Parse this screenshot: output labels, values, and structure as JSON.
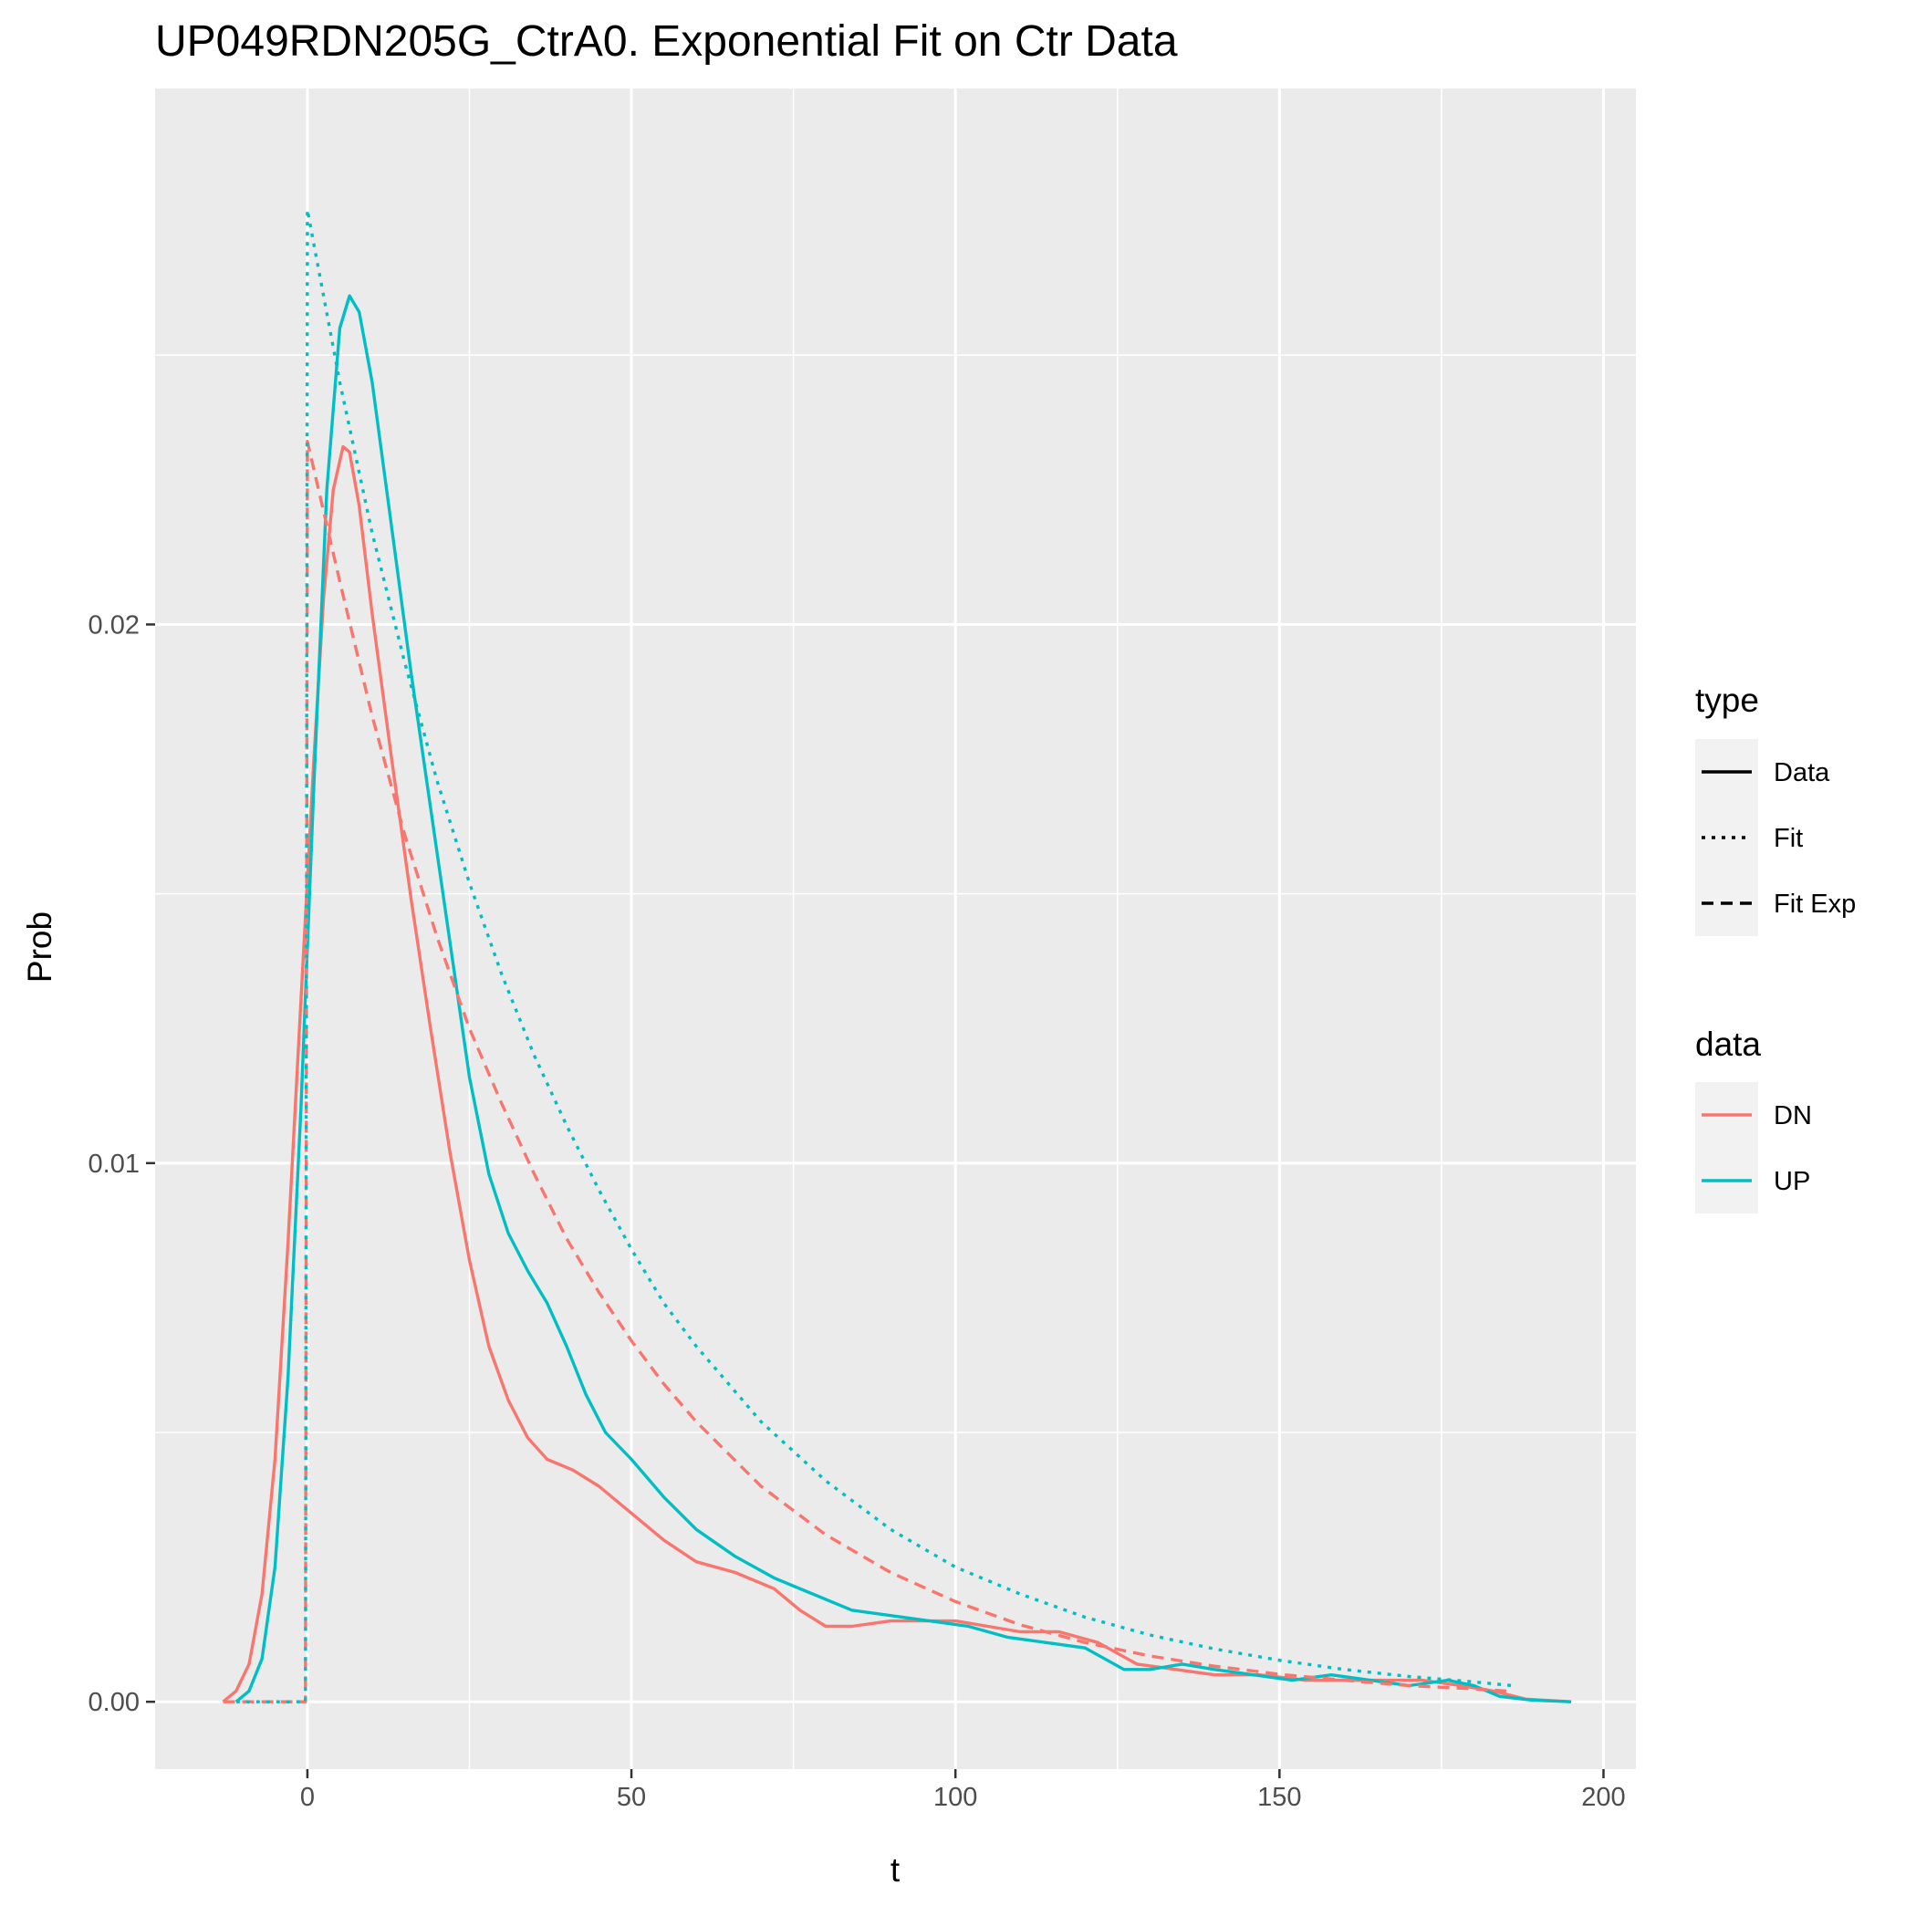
{
  "chart_data": {
    "type": "line",
    "title": "UP049RDN205G_CtrA0. Exponential Fit on Ctr Data",
    "xlabel": "t",
    "ylabel": "Prob",
    "xlim": [
      -23.5,
      205
    ],
    "ylim": [
      -0.00125,
      0.02995
    ],
    "x_ticks": [
      0,
      50,
      100,
      150,
      200
    ],
    "x_tick_labels": [
      "0",
      "50",
      "100",
      "150",
      "200"
    ],
    "y_ticks": [
      0.0,
      0.01,
      0.02
    ],
    "y_tick_labels": [
      "0.00",
      "0.01",
      "0.02"
    ],
    "grid": true,
    "legend_position": "right",
    "legends": [
      {
        "title": "type",
        "entries": [
          {
            "label": "Data",
            "linestyle": "solid"
          },
          {
            "label": "Fit",
            "linestyle": "dotted"
          },
          {
            "label": "Fit Exp",
            "linestyle": "dashed"
          }
        ]
      },
      {
        "title": "data",
        "entries": [
          {
            "label": "DN",
            "color": "#F8766D"
          },
          {
            "label": "UP",
            "color": "#00BFC4"
          }
        ]
      }
    ],
    "series": [
      {
        "group": "DN",
        "type": "Data",
        "color": "#F8766D",
        "linestyle": "solid",
        "points": [
          [
            -13,
            0
          ],
          [
            -11,
            0.0002
          ],
          [
            -9,
            0.0007
          ],
          [
            -7,
            0.002
          ],
          [
            -5,
            0.0045
          ],
          [
            -3,
            0.0085
          ],
          [
            -1,
            0.013
          ],
          [
            1,
            0.0175
          ],
          [
            2.5,
            0.0205
          ],
          [
            4,
            0.0225
          ],
          [
            5.5,
            0.0233
          ],
          [
            6.5,
            0.0232
          ],
          [
            8,
            0.0222
          ],
          [
            10,
            0.0202
          ],
          [
            13,
            0.0175
          ],
          [
            16,
            0.0149
          ],
          [
            19,
            0.0125
          ],
          [
            22,
            0.0102
          ],
          [
            25,
            0.0082
          ],
          [
            28,
            0.0066
          ],
          [
            31,
            0.0056
          ],
          [
            34,
            0.0049
          ],
          [
            37,
            0.0045
          ],
          [
            41,
            0.0043
          ],
          [
            45,
            0.004
          ],
          [
            50,
            0.0035
          ],
          [
            55,
            0.003
          ],
          [
            60,
            0.0026
          ],
          [
            66,
            0.0024
          ],
          [
            72,
            0.0021
          ],
          [
            76,
            0.0017
          ],
          [
            80,
            0.0014
          ],
          [
            84,
            0.0014
          ],
          [
            90,
            0.0015
          ],
          [
            100,
            0.0015
          ],
          [
            105,
            0.0014
          ],
          [
            110,
            0.0013
          ],
          [
            116,
            0.0013
          ],
          [
            122,
            0.0011
          ],
          [
            128,
            0.0007
          ],
          [
            134,
            0.0006
          ],
          [
            140,
            0.0005
          ],
          [
            147,
            0.0005
          ],
          [
            154,
            0.0004
          ],
          [
            160,
            0.0004
          ],
          [
            166,
            0.0004
          ],
          [
            172,
            0.0004
          ],
          [
            178,
            0.0003
          ],
          [
            183,
            0.0002
          ],
          [
            188,
            5e-05
          ],
          [
            195,
            0
          ]
        ]
      },
      {
        "group": "UP",
        "type": "Data",
        "color": "#00BFC4",
        "linestyle": "solid",
        "points": [
          [
            -11,
            0
          ],
          [
            -9,
            0.0002
          ],
          [
            -7,
            0.0008
          ],
          [
            -5,
            0.0025
          ],
          [
            -3,
            0.006
          ],
          [
            -1,
            0.011
          ],
          [
            1,
            0.017
          ],
          [
            3,
            0.0225
          ],
          [
            5,
            0.0255
          ],
          [
            6.5,
            0.0261
          ],
          [
            8,
            0.0258
          ],
          [
            10,
            0.0245
          ],
          [
            13,
            0.0218
          ],
          [
            16,
            0.0191
          ],
          [
            19,
            0.0166
          ],
          [
            22,
            0.0141
          ],
          [
            25,
            0.0116
          ],
          [
            28,
            0.0098
          ],
          [
            31,
            0.0087
          ],
          [
            34,
            0.008
          ],
          [
            37,
            0.0074
          ],
          [
            40,
            0.0066
          ],
          [
            43,
            0.0057
          ],
          [
            46,
            0.005
          ],
          [
            50,
            0.0045
          ],
          [
            55,
            0.0038
          ],
          [
            60,
            0.0032
          ],
          [
            66,
            0.0027
          ],
          [
            72,
            0.0023
          ],
          [
            78,
            0.002
          ],
          [
            84,
            0.0017
          ],
          [
            90,
            0.0016
          ],
          [
            96,
            0.0015
          ],
          [
            102,
            0.0014
          ],
          [
            108,
            0.0012
          ],
          [
            114,
            0.0011
          ],
          [
            120,
            0.001
          ],
          [
            126,
            0.0006
          ],
          [
            130,
            0.0006
          ],
          [
            135,
            0.0007
          ],
          [
            140,
            0.0006
          ],
          [
            146,
            0.0005
          ],
          [
            152,
            0.0004
          ],
          [
            158,
            0.0005
          ],
          [
            164,
            0.0004
          ],
          [
            170,
            0.0003
          ],
          [
            176,
            0.0004
          ],
          [
            180,
            0.0003
          ],
          [
            184,
            0.0001
          ],
          [
            189,
            3e-05
          ],
          [
            195,
            0
          ]
        ]
      },
      {
        "group": "DN",
        "type": "Fit Exp",
        "color": "#F8766D",
        "linestyle": "dashed",
        "points": [
          [
            -13,
            0
          ],
          [
            -0.3,
            0
          ],
          [
            0,
            0.0234
          ],
          [
            5,
            0.0208
          ],
          [
            10,
            0.0183
          ],
          [
            15,
            0.0161
          ],
          [
            20,
            0.0142
          ],
          [
            25,
            0.0125
          ],
          [
            30,
            0.0111
          ],
          [
            35,
            0.0098
          ],
          [
            40,
            0.0086
          ],
          [
            45,
            0.0076
          ],
          [
            50,
            0.0067
          ],
          [
            55,
            0.0059
          ],
          [
            60,
            0.0052
          ],
          [
            70,
            0.004
          ],
          [
            80,
            0.0031
          ],
          [
            90,
            0.0024
          ],
          [
            100,
            0.00186
          ],
          [
            110,
            0.00143
          ],
          [
            120,
            0.0011
          ],
          [
            130,
            0.00085
          ],
          [
            140,
            0.00066
          ],
          [
            150,
            0.00051
          ],
          [
            160,
            0.0004
          ],
          [
            170,
            0.0003
          ],
          [
            180,
            0.00024
          ],
          [
            185,
            0.0002
          ]
        ]
      },
      {
        "group": "UP",
        "type": "Fit",
        "color": "#00BFC4",
        "linestyle": "dotted",
        "points": [
          [
            -11,
            0
          ],
          [
            -0.3,
            0
          ],
          [
            0,
            0.0277
          ],
          [
            5,
            0.0245
          ],
          [
            10,
            0.0217
          ],
          [
            15,
            0.0193
          ],
          [
            20,
            0.0171
          ],
          [
            25,
            0.0152
          ],
          [
            30,
            0.0135
          ],
          [
            35,
            0.012
          ],
          [
            40,
            0.0107
          ],
          [
            45,
            0.0095
          ],
          [
            50,
            0.0084
          ],
          [
            55,
            0.0074
          ],
          [
            60,
            0.0066
          ],
          [
            70,
            0.0052
          ],
          [
            80,
            0.0041
          ],
          [
            90,
            0.0032
          ],
          [
            100,
            0.0025
          ],
          [
            110,
            0.002
          ],
          [
            120,
            0.00157
          ],
          [
            130,
            0.00124
          ],
          [
            140,
            0.00098
          ],
          [
            150,
            0.00077
          ],
          [
            160,
            0.0006
          ],
          [
            170,
            0.00047
          ],
          [
            180,
            0.00037
          ],
          [
            186,
            0.0003
          ]
        ]
      }
    ]
  }
}
